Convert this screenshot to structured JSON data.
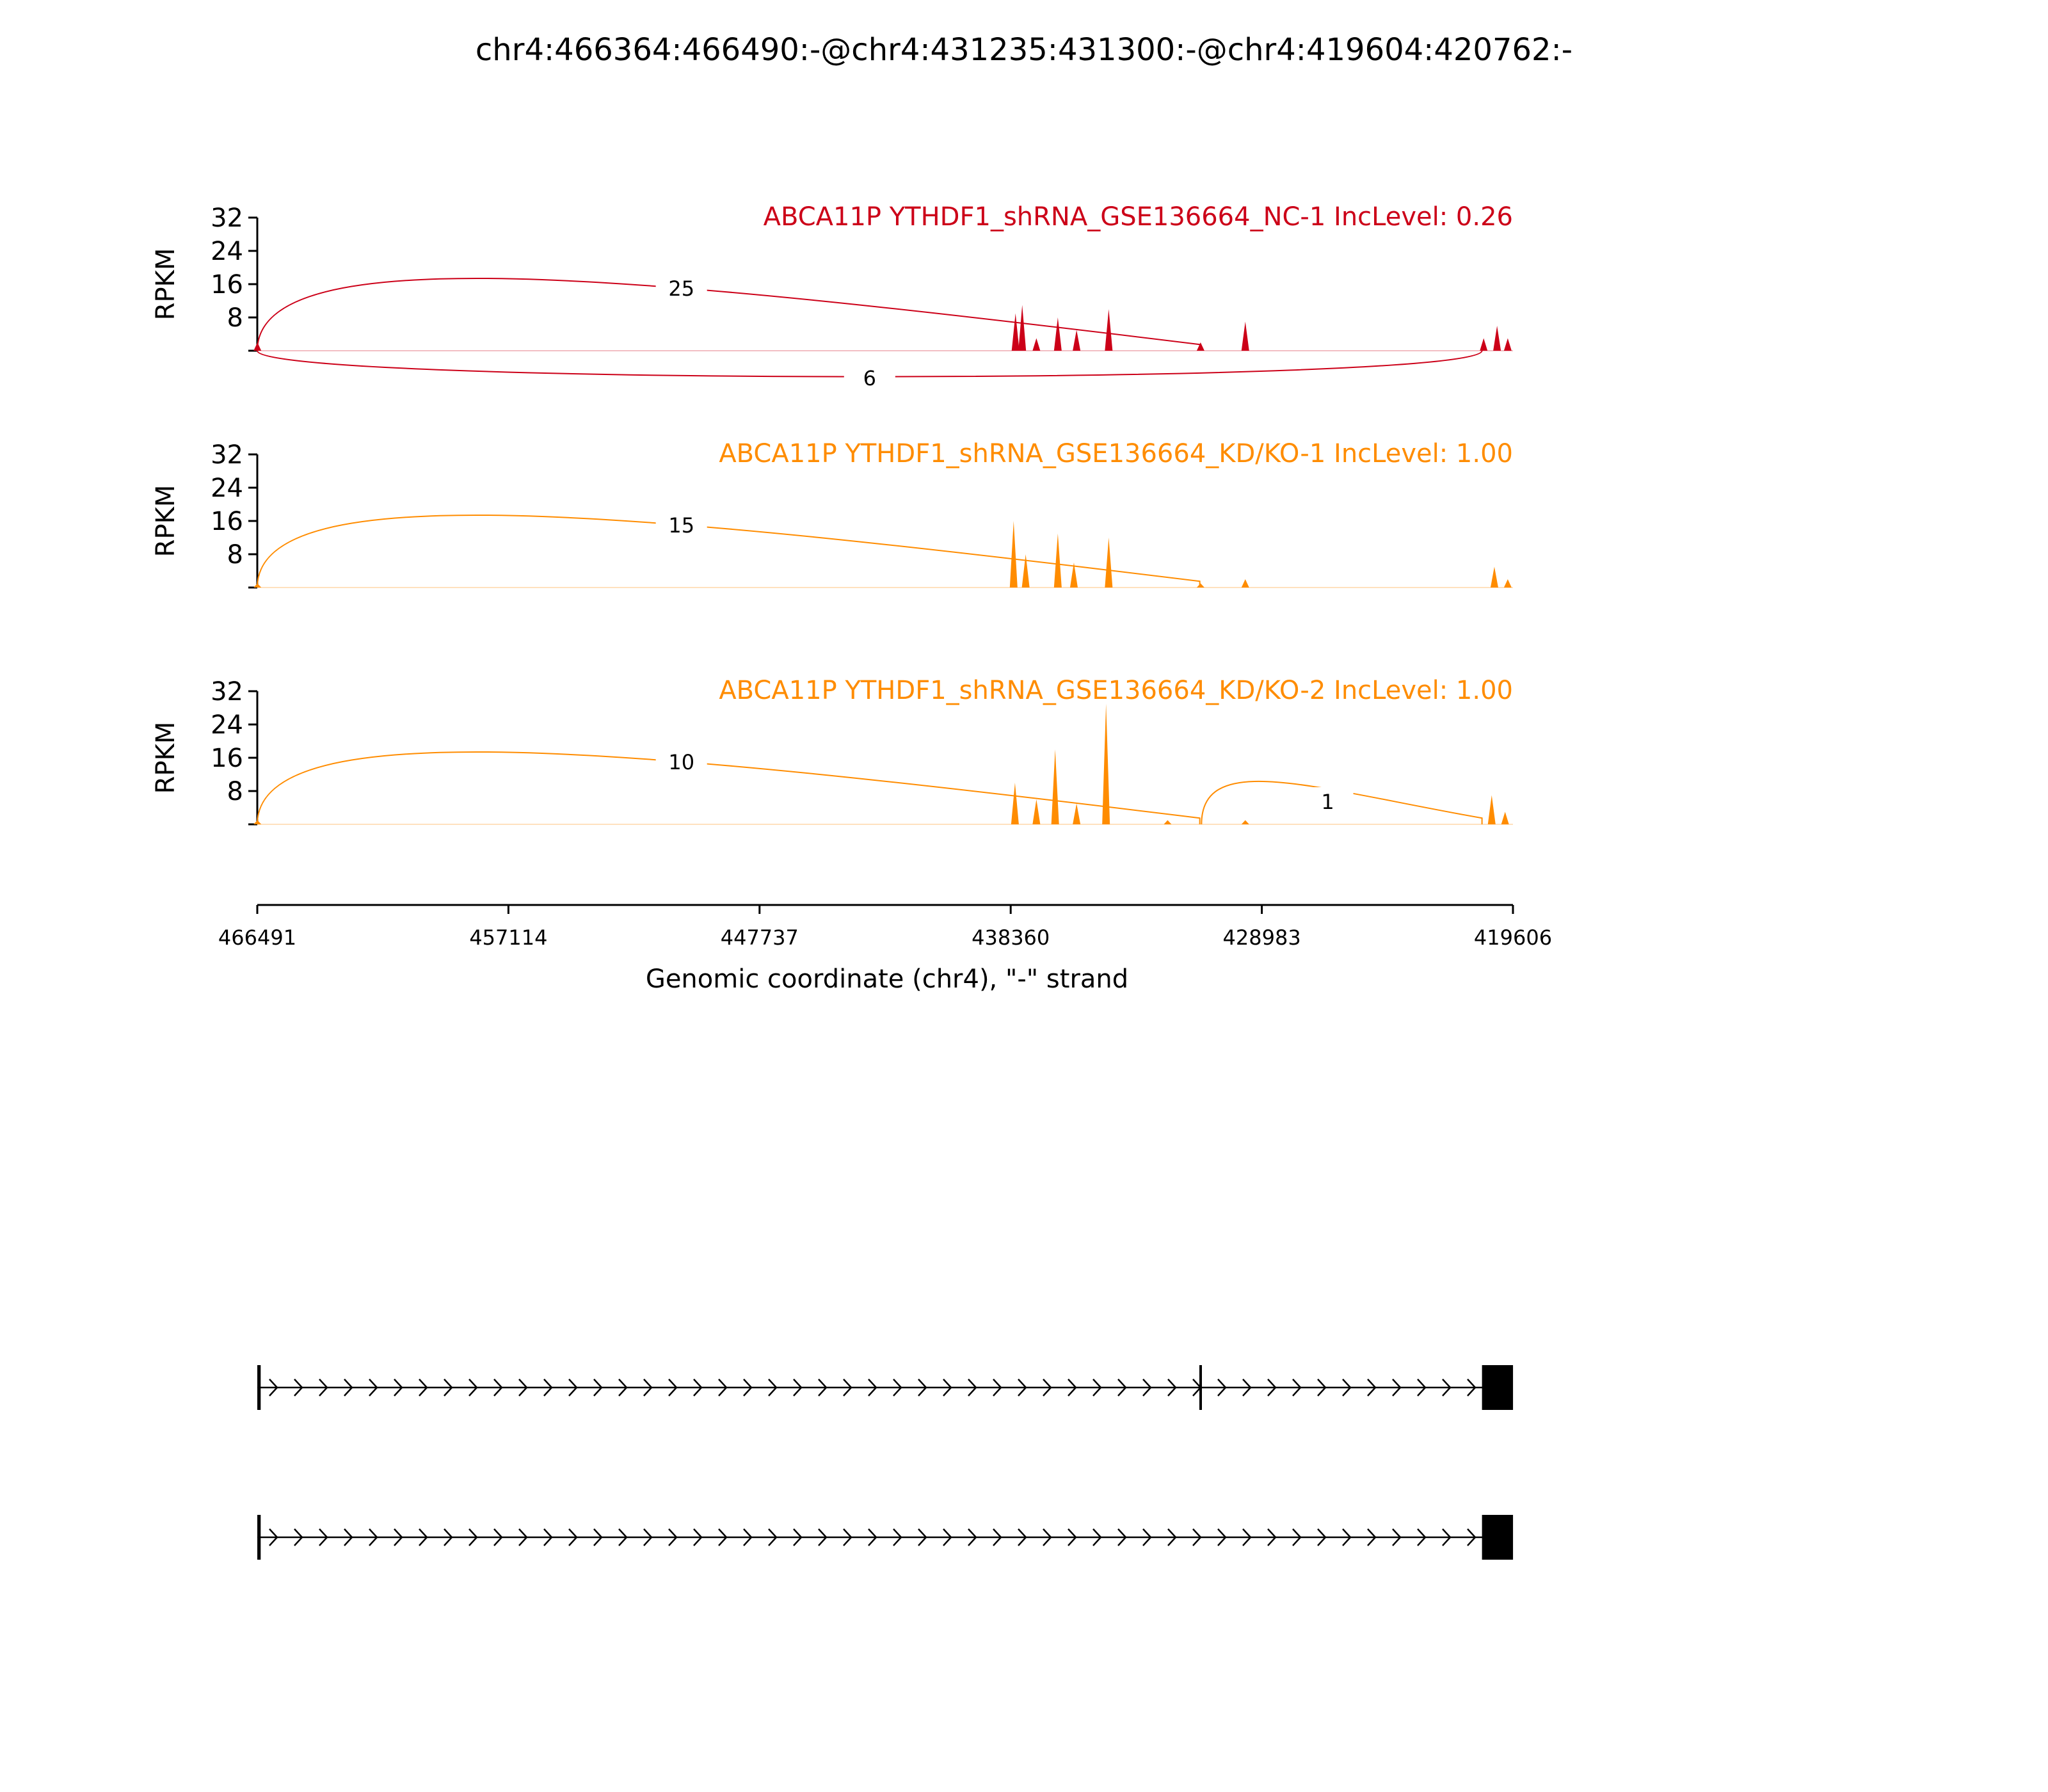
{
  "chart_data": {
    "type": "area",
    "title": "chr4:466364:466490:-@chr4:431235:431300:-@chr4:419604:420762:-",
    "xlabel": "Genomic coordinate (chr4), \"-\" strand",
    "ylabel": "RPKM",
    "xlim": [
      466491,
      419606
    ],
    "ylim": [
      0,
      32
    ],
    "x_ticks": [
      "466491",
      "457114",
      "447737",
      "438360",
      "428983",
      "419606"
    ],
    "y_ticks": [
      "32",
      "24",
      "16",
      "8"
    ],
    "panels": [
      {
        "label": "ABCA11P YTHDF1_shRNA_GSE136664_NC-1 IncLevel: 0.26",
        "color": "#cc0018",
        "coverage_peaks": [
          {
            "x": 466485,
            "y": 2
          },
          {
            "x": 438180,
            "y": 9
          },
          {
            "x": 437930,
            "y": 11
          },
          {
            "x": 437400,
            "y": 3
          },
          {
            "x": 436600,
            "y": 8
          },
          {
            "x": 435900,
            "y": 5
          },
          {
            "x": 434700,
            "y": 10
          },
          {
            "x": 431270,
            "y": 2
          },
          {
            "x": 429600,
            "y": 7
          },
          {
            "x": 420700,
            "y": 3
          },
          {
            "x": 420200,
            "y": 6
          },
          {
            "x": 419800,
            "y": 3
          }
        ],
        "junctions": [
          {
            "from": 466491,
            "to": 431300,
            "count": "25",
            "side": "above"
          },
          {
            "from": 466491,
            "to": 420762,
            "count": "6",
            "side": "below"
          }
        ]
      },
      {
        "label": "ABCA11P YTHDF1_shRNA_GSE136664_KD/KO-1 IncLevel: 1.00",
        "color": "#ff8c00",
        "coverage_peaks": [
          {
            "x": 466485,
            "y": 1
          },
          {
            "x": 438250,
            "y": 16
          },
          {
            "x": 437800,
            "y": 8
          },
          {
            "x": 436600,
            "y": 13
          },
          {
            "x": 436000,
            "y": 6
          },
          {
            "x": 434700,
            "y": 12
          },
          {
            "x": 431270,
            "y": 1
          },
          {
            "x": 429600,
            "y": 2
          },
          {
            "x": 420300,
            "y": 5
          },
          {
            "x": 419800,
            "y": 2
          }
        ],
        "junctions": [
          {
            "from": 466491,
            "to": 431300,
            "count": "15",
            "side": "above"
          }
        ]
      },
      {
        "label": "ABCA11P YTHDF1_shRNA_GSE136664_KD/KO-2 IncLevel: 1.00",
        "color": "#ff8c00",
        "coverage_peaks": [
          {
            "x": 466485,
            "y": 1
          },
          {
            "x": 438200,
            "y": 10
          },
          {
            "x": 437400,
            "y": 6
          },
          {
            "x": 436700,
            "y": 18
          },
          {
            "x": 435900,
            "y": 5
          },
          {
            "x": 434800,
            "y": 29
          },
          {
            "x": 432500,
            "y": 1
          },
          {
            "x": 429600,
            "y": 1
          },
          {
            "x": 420400,
            "y": 7
          },
          {
            "x": 419900,
            "y": 3
          }
        ],
        "junctions": [
          {
            "from": 466491,
            "to": 431300,
            "count": "10",
            "side": "above"
          },
          {
            "from": 431235,
            "to": 420762,
            "count": "1",
            "side": "above"
          }
        ]
      }
    ],
    "transcripts": [
      {
        "exons": [
          [
            466364,
            466490
          ],
          [
            431235,
            431300
          ],
          [
            419604,
            420762
          ]
        ]
      },
      {
        "exons": [
          [
            466364,
            466490
          ],
          [
            419604,
            420762
          ]
        ]
      }
    ]
  }
}
